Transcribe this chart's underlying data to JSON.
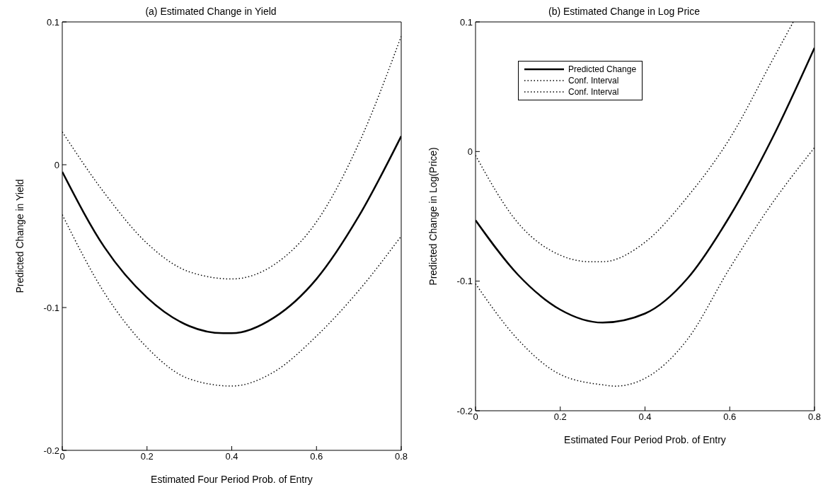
{
  "chart_data": [
    {
      "type": "line",
      "title": "(a) Estimated Change in Yield",
      "xlabel": "Estimated Four Period Prob. of Entry",
      "ylabel": "Predicted Change in Yield",
      "xlim": [
        0,
        0.8
      ],
      "xticks": [
        0,
        0.2,
        0.4,
        0.6,
        0.8
      ],
      "ylim": [
        -0.2,
        0.1
      ],
      "yticks": [
        -0.2,
        -0.1,
        0,
        0.1
      ],
      "grid": false,
      "legend": false,
      "marker": "none",
      "series": [
        {
          "color": "#000000",
          "line_style": "solid",
          "x": [
            0,
            0.1,
            0.2,
            0.3,
            0.38,
            0.4,
            0.5,
            0.6,
            0.7,
            0.8
          ],
          "values": [
            -0.005,
            -0.058,
            -0.093,
            -0.113,
            -0.118,
            -0.118,
            -0.107,
            -0.08,
            -0.036,
            0.02
          ]
        },
        {
          "color": "#000000",
          "line_style": "dotted",
          "x": [
            0,
            0.1,
            0.2,
            0.3,
            0.4,
            0.5,
            0.6,
            0.7,
            0.8
          ],
          "values": [
            0.023,
            -0.02,
            -0.055,
            -0.075,
            -0.08,
            -0.07,
            -0.04,
            0.015,
            0.09
          ]
        },
        {
          "color": "#000000",
          "line_style": "dotted",
          "x": [
            0,
            0.1,
            0.2,
            0.3,
            0.4,
            0.5,
            0.6,
            0.7,
            0.8
          ],
          "values": [
            -0.035,
            -0.09,
            -0.128,
            -0.15,
            -0.155,
            -0.145,
            -0.12,
            -0.088,
            -0.05
          ]
        }
      ]
    },
    {
      "type": "line",
      "title": "(b) Estimated Change in Log Price",
      "xlabel": "Estimated Four Period Prob. of Entry",
      "ylabel": "Predicted Change in Log(Price)",
      "xlim": [
        0,
        0.8
      ],
      "xticks": [
        0,
        0.2,
        0.4,
        0.6,
        0.8
      ],
      "ylim": [
        -0.2,
        0.1
      ],
      "yticks": [
        -0.2,
        -0.1,
        0,
        0.1
      ],
      "grid": false,
      "legend": "top left",
      "marker": "none",
      "series": [
        {
          "name": "Predicted Change",
          "color": "#000000",
          "line_style": "solid",
          "x": [
            0,
            0.1,
            0.2,
            0.3,
            0.4,
            0.5,
            0.6,
            0.7,
            0.8
          ],
          "values": [
            -0.053,
            -0.095,
            -0.122,
            -0.132,
            -0.125,
            -0.098,
            -0.05,
            0.01,
            0.08
          ]
        },
        {
          "name": "Conf. Interval",
          "color": "#000000",
          "line_style": "dotted",
          "x": [
            0,
            0.1,
            0.2,
            0.27,
            0.3,
            0.4,
            0.5,
            0.6,
            0.7,
            0.75
          ],
          "values": [
            -0.003,
            -0.055,
            -0.08,
            -0.085,
            -0.085,
            -0.07,
            -0.035,
            0.01,
            0.07,
            0.1
          ]
        },
        {
          "name": "Conf. Interval",
          "color": "#000000",
          "line_style": "dotted",
          "x": [
            0,
            0.1,
            0.2,
            0.3,
            0.33,
            0.4,
            0.5,
            0.6,
            0.7,
            0.8
          ],
          "values": [
            -0.102,
            -0.145,
            -0.172,
            -0.18,
            -0.181,
            -0.175,
            -0.145,
            -0.09,
            -0.04,
            0.003
          ]
        }
      ]
    }
  ]
}
